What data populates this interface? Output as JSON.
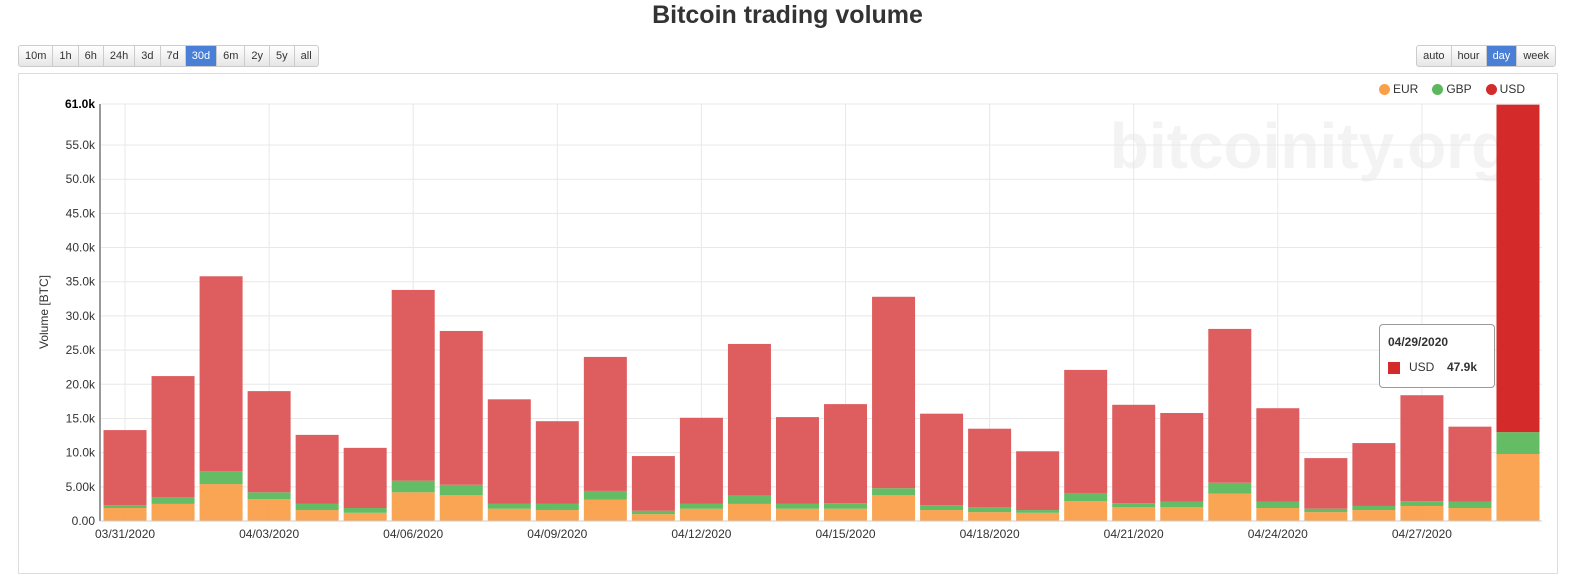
{
  "title": "Bitcoin trading volume",
  "range_buttons": [
    {
      "label": "10m",
      "active": false
    },
    {
      "label": "1h",
      "active": false
    },
    {
      "label": "6h",
      "active": false
    },
    {
      "label": "24h",
      "active": false
    },
    {
      "label": "3d",
      "active": false
    },
    {
      "label": "7d",
      "active": false
    },
    {
      "label": "30d",
      "active": true
    },
    {
      "label": "6m",
      "active": false
    },
    {
      "label": "2y",
      "active": false
    },
    {
      "label": "5y",
      "active": false
    },
    {
      "label": "all",
      "active": false
    }
  ],
  "granularity_buttons": [
    {
      "label": "auto",
      "active": false
    },
    {
      "label": "hour",
      "active": false
    },
    {
      "label": "day",
      "active": true
    },
    {
      "label": "week",
      "active": false
    }
  ],
  "watermark": "bitcoinity.org",
  "tooltip": {
    "date": "04/29/2020",
    "series": "USD",
    "value": "47.9k"
  },
  "chart_data": {
    "type": "bar",
    "stacked": true,
    "ylabel": "Volume [BTC]",
    "xlabel": "",
    "ylim": [
      0,
      61000
    ],
    "yticks": [
      "0.00",
      "5.00k",
      "10.0k",
      "15.0k",
      "20.0k",
      "25.0k",
      "30.0k",
      "35.0k",
      "40.0k",
      "45.0k",
      "50.0k",
      "55.0k",
      "61.0k"
    ],
    "ytick_values": [
      0,
      5000,
      10000,
      15000,
      20000,
      25000,
      30000,
      35000,
      40000,
      45000,
      50000,
      55000,
      61000
    ],
    "xtick_labels": [
      "03/31/2020",
      "04/03/2020",
      "04/06/2020",
      "04/09/2020",
      "04/12/2020",
      "04/15/2020",
      "04/18/2020",
      "04/21/2020",
      "04/24/2020",
      "04/27/2020"
    ],
    "grid": true,
    "legend_position": "top-right",
    "categories": [
      "03/31/2020",
      "04/01/2020",
      "04/02/2020",
      "04/03/2020",
      "04/04/2020",
      "04/05/2020",
      "04/06/2020",
      "04/07/2020",
      "04/08/2020",
      "04/09/2020",
      "04/10/2020",
      "04/11/2020",
      "04/12/2020",
      "04/13/2020",
      "04/14/2020",
      "04/15/2020",
      "04/16/2020",
      "04/17/2020",
      "04/18/2020",
      "04/19/2020",
      "04/20/2020",
      "04/21/2020",
      "04/22/2020",
      "04/23/2020",
      "04/24/2020",
      "04/25/2020",
      "04/26/2020",
      "04/27/2020",
      "04/28/2020",
      "04/29/2020"
    ],
    "series": [
      {
        "name": "EUR",
        "color": "#f9a04b",
        "values": [
          1.9,
          2.5,
          5.4,
          3.2,
          1.6,
          1.2,
          4.2,
          3.8,
          1.8,
          1.6,
          3.1,
          1.0,
          1.8,
          2.5,
          1.8,
          1.8,
          3.8,
          1.6,
          1.3,
          1.2,
          2.9,
          2.0,
          2.0,
          4.0,
          1.9,
          1.3,
          1.6,
          2.2,
          1.9,
          9.8
        ]
      },
      {
        "name": "GBP",
        "color": "#5cb85c",
        "values": [
          0.4,
          1.0,
          1.9,
          1.0,
          0.9,
          0.7,
          1.7,
          1.5,
          0.7,
          0.9,
          1.3,
          0.5,
          0.7,
          1.2,
          0.7,
          0.8,
          1.0,
          0.7,
          0.7,
          0.4,
          1.2,
          0.6,
          0.8,
          1.6,
          0.9,
          0.5,
          0.6,
          0.7,
          0.9,
          3.2
        ]
      },
      {
        "name": "USD",
        "color": "#dc5556",
        "values": [
          11.0,
          17.7,
          28.5,
          14.8,
          10.1,
          8.8,
          27.9,
          22.5,
          15.3,
          12.1,
          19.6,
          8.0,
          12.6,
          22.2,
          12.7,
          14.5,
          28.0,
          13.4,
          11.5,
          8.6,
          18.0,
          14.4,
          13.0,
          22.5,
          13.7,
          7.4,
          9.2,
          15.5,
          11.0,
          47.9
        ]
      }
    ],
    "value_unit": "thousand BTC",
    "highlighted_color": "#d42a2a"
  }
}
